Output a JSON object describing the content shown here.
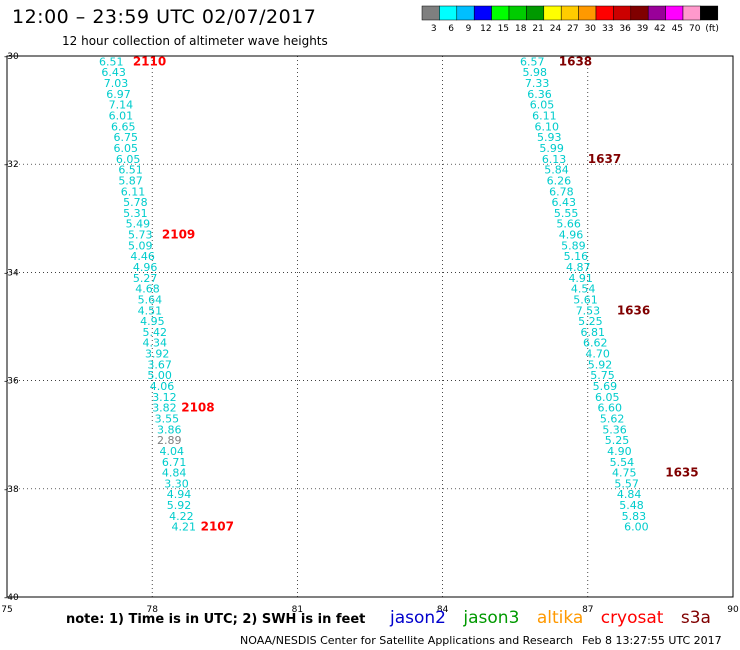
{
  "header": {
    "title": "12:00 – 23:59 UTC 02/07/2017",
    "subtitle": "12 hour collection of altimeter wave heights"
  },
  "colorbar": {
    "colors": [
      "#7f7f7f",
      "#00ffff",
      "#00bfff",
      "#0000ff",
      "#00ff00",
      "#00cc00",
      "#009900",
      "#ffff00",
      "#ffcc00",
      "#ff9900",
      "#ff0000",
      "#cc0000",
      "#800000",
      "#990099",
      "#ff00ff",
      "#ff99cc",
      "#000000"
    ],
    "labels": [
      "3",
      "6",
      "9",
      "12",
      "15",
      "18",
      "21",
      "24",
      "27",
      "30",
      "33",
      "36",
      "39",
      "42",
      "45",
      "70",
      "(ft)"
    ]
  },
  "note": "note: 1) Time is in UTC; 2) SWH is in feet",
  "satellites": [
    {
      "name": "jason2",
      "color": "#0000cc"
    },
    {
      "name": "jason3",
      "color": "#009900"
    },
    {
      "name": "altika",
      "color": "#ff9900"
    },
    {
      "name": "cryosat",
      "color": "#ff0000"
    },
    {
      "name": "s3a",
      "color": "#800000"
    }
  ],
  "credit": "NOAA/NESDIS Center for Satellite Applications and Research",
  "timestamp": "Feb  8 13:27:55 UTC 2017",
  "chart_data": {
    "type": "scatter",
    "xlim": [
      75,
      90
    ],
    "ylim": [
      -40,
      -30
    ],
    "x_ticks": [
      "75",
      "78",
      "81",
      "84",
      "87",
      "90"
    ],
    "y_ticks": [
      "-30",
      "-32",
      "-34",
      "-36",
      "-38",
      "-40"
    ],
    "grid": true,
    "left_track": {
      "color": "#00cccc",
      "points": [
        {
          "lon": 76.9,
          "lat": -30.1,
          "swh": "6.51"
        },
        {
          "lon": 76.95,
          "lat": -30.3,
          "swh": "6.43"
        },
        {
          "lon": 77.0,
          "lat": -30.5,
          "swh": "7.03"
        },
        {
          "lon": 77.05,
          "lat": -30.7,
          "swh": "6.97"
        },
        {
          "lon": 77.1,
          "lat": -30.9,
          "swh": "7.14"
        },
        {
          "lon": 77.1,
          "lat": -31.1,
          "swh": "6.01"
        },
        {
          "lon": 77.15,
          "lat": -31.3,
          "swh": "6.65"
        },
        {
          "lon": 77.2,
          "lat": -31.5,
          "swh": "6.75"
        },
        {
          "lon": 77.2,
          "lat": -31.7,
          "swh": "6.05"
        },
        {
          "lon": 77.25,
          "lat": -31.9,
          "swh": "6.05"
        },
        {
          "lon": 77.3,
          "lat": -32.1,
          "swh": "6.51"
        },
        {
          "lon": 77.3,
          "lat": -32.3,
          "swh": "5.87"
        },
        {
          "lon": 77.35,
          "lat": -32.5,
          "swh": "6.11"
        },
        {
          "lon": 77.4,
          "lat": -32.7,
          "swh": "5.78"
        },
        {
          "lon": 77.4,
          "lat": -32.9,
          "swh": "5.31"
        },
        {
          "lon": 77.45,
          "lat": -33.1,
          "swh": "5.49"
        },
        {
          "lon": 77.5,
          "lat": -33.3,
          "swh": "5.73"
        },
        {
          "lon": 77.5,
          "lat": -33.5,
          "swh": "5.09"
        },
        {
          "lon": 77.55,
          "lat": -33.7,
          "swh": "4.46"
        },
        {
          "lon": 77.6,
          "lat": -33.9,
          "swh": "4.96"
        },
        {
          "lon": 77.6,
          "lat": -34.1,
          "swh": "5.27"
        },
        {
          "lon": 77.65,
          "lat": -34.3,
          "swh": "4.68"
        },
        {
          "lon": 77.7,
          "lat": -34.5,
          "swh": "5.64"
        },
        {
          "lon": 77.7,
          "lat": -34.7,
          "swh": "4.51"
        },
        {
          "lon": 77.75,
          "lat": -34.9,
          "swh": "4.95"
        },
        {
          "lon": 77.8,
          "lat": -35.1,
          "swh": "5.42"
        },
        {
          "lon": 77.8,
          "lat": -35.3,
          "swh": "4.34"
        },
        {
          "lon": 77.85,
          "lat": -35.5,
          "swh": "3.92"
        },
        {
          "lon": 77.9,
          "lat": -35.7,
          "swh": "3.67"
        },
        {
          "lon": 77.9,
          "lat": -35.9,
          "swh": "5.00"
        },
        {
          "lon": 77.95,
          "lat": -36.1,
          "swh": "4.06"
        },
        {
          "lon": 78.0,
          "lat": -36.3,
          "swh": "3.12"
        },
        {
          "lon": 78.0,
          "lat": -36.5,
          "swh": "3.82"
        },
        {
          "lon": 78.05,
          "lat": -36.7,
          "swh": "3.55"
        },
        {
          "lon": 78.1,
          "lat": -36.9,
          "swh": "3.86"
        },
        {
          "lon": 78.1,
          "lat": -37.1,
          "swh": "2.89",
          "color": "#7f7f7f"
        },
        {
          "lon": 78.15,
          "lat": -37.3,
          "swh": "4.04"
        },
        {
          "lon": 78.2,
          "lat": -37.5,
          "swh": "6.71"
        },
        {
          "lon": 78.2,
          "lat": -37.7,
          "swh": "4.84"
        },
        {
          "lon": 78.25,
          "lat": -37.9,
          "swh": "3.30"
        },
        {
          "lon": 78.3,
          "lat": -38.1,
          "swh": "4.94"
        },
        {
          "lon": 78.3,
          "lat": -38.3,
          "swh": "5.92"
        },
        {
          "lon": 78.35,
          "lat": -38.5,
          "swh": "4.22"
        },
        {
          "lon": 78.4,
          "lat": -38.7,
          "swh": "4.21"
        }
      ],
      "time_labels": [
        {
          "lon": 77.6,
          "lat": -30.1,
          "text": "2110"
        },
        {
          "lon": 78.2,
          "lat": -33.3,
          "text": "2109"
        },
        {
          "lon": 78.6,
          "lat": -36.5,
          "text": "2108"
        },
        {
          "lon": 79.0,
          "lat": -38.7,
          "text": "2107"
        }
      ],
      "color_time": "#ff0000"
    },
    "right_track": {
      "color": "#00cccc",
      "points": [
        {
          "lon": 85.6,
          "lat": -30.1,
          "swh": "6.57"
        },
        {
          "lon": 85.65,
          "lat": -30.3,
          "swh": "5.98"
        },
        {
          "lon": 85.7,
          "lat": -30.5,
          "swh": "7.33"
        },
        {
          "lon": 85.75,
          "lat": -30.7,
          "swh": "6.36"
        },
        {
          "lon": 85.8,
          "lat": -30.9,
          "swh": "6.05"
        },
        {
          "lon": 85.85,
          "lat": -31.1,
          "swh": "6.11"
        },
        {
          "lon": 85.9,
          "lat": -31.3,
          "swh": "6.10"
        },
        {
          "lon": 85.95,
          "lat": -31.5,
          "swh": "5.93"
        },
        {
          "lon": 86.0,
          "lat": -31.7,
          "swh": "5.99"
        },
        {
          "lon": 86.05,
          "lat": -31.9,
          "swh": "6.13"
        },
        {
          "lon": 86.1,
          "lat": -32.1,
          "swh": "5.84"
        },
        {
          "lon": 86.15,
          "lat": -32.3,
          "swh": "6.26"
        },
        {
          "lon": 86.2,
          "lat": -32.5,
          "swh": "6.78"
        },
        {
          "lon": 86.25,
          "lat": -32.7,
          "swh": "6.43"
        },
        {
          "lon": 86.3,
          "lat": -32.9,
          "swh": "5.55"
        },
        {
          "lon": 86.35,
          "lat": -33.1,
          "swh": "5.66"
        },
        {
          "lon": 86.4,
          "lat": -33.3,
          "swh": "4.96"
        },
        {
          "lon": 86.45,
          "lat": -33.5,
          "swh": "5.89"
        },
        {
          "lon": 86.5,
          "lat": -33.7,
          "swh": "5.16"
        },
        {
          "lon": 86.55,
          "lat": -33.9,
          "swh": "4.87"
        },
        {
          "lon": 86.6,
          "lat": -34.1,
          "swh": "4.91"
        },
        {
          "lon": 86.65,
          "lat": -34.3,
          "swh": "4.54"
        },
        {
          "lon": 86.7,
          "lat": -34.5,
          "swh": "5.61"
        },
        {
          "lon": 86.75,
          "lat": -34.7,
          "swh": "7.53"
        },
        {
          "lon": 86.8,
          "lat": -34.9,
          "swh": "5.25"
        },
        {
          "lon": 86.85,
          "lat": -35.1,
          "swh": "6.81"
        },
        {
          "lon": 86.9,
          "lat": -35.3,
          "swh": "6.62"
        },
        {
          "lon": 86.95,
          "lat": -35.5,
          "swh": "4.70"
        },
        {
          "lon": 87.0,
          "lat": -35.7,
          "swh": "5.92"
        },
        {
          "lon": 87.05,
          "lat": -35.9,
          "swh": "5.75"
        },
        {
          "lon": 87.1,
          "lat": -36.1,
          "swh": "5.69"
        },
        {
          "lon": 87.15,
          "lat": -36.3,
          "swh": "6.05"
        },
        {
          "lon": 87.2,
          "lat": -36.5,
          "swh": "6.60"
        },
        {
          "lon": 87.25,
          "lat": -36.7,
          "swh": "5.62"
        },
        {
          "lon": 87.3,
          "lat": -36.9,
          "swh": "5.36"
        },
        {
          "lon": 87.35,
          "lat": -37.1,
          "swh": "5.25"
        },
        {
          "lon": 87.4,
          "lat": -37.3,
          "swh": "4.90"
        },
        {
          "lon": 87.45,
          "lat": -37.5,
          "swh": "5.54"
        },
        {
          "lon": 87.5,
          "lat": -37.7,
          "swh": "4.75"
        },
        {
          "lon": 87.55,
          "lat": -37.9,
          "swh": "5.57"
        },
        {
          "lon": 87.6,
          "lat": -38.1,
          "swh": "4.84"
        },
        {
          "lon": 87.65,
          "lat": -38.3,
          "swh": "5.48"
        },
        {
          "lon": 87.7,
          "lat": -38.5,
          "swh": "5.83"
        },
        {
          "lon": 87.75,
          "lat": -38.7,
          "swh": "6.00"
        }
      ],
      "time_labels": [
        {
          "lon": 86.4,
          "lat": -30.1,
          "text": "1638"
        },
        {
          "lon": 87.0,
          "lat": -31.9,
          "text": "1637"
        },
        {
          "lon": 87.6,
          "lat": -34.7,
          "text": "1636"
        },
        {
          "lon": 88.6,
          "lat": -37.7,
          "text": "1635"
        }
      ],
      "color_time": "#800000"
    }
  }
}
